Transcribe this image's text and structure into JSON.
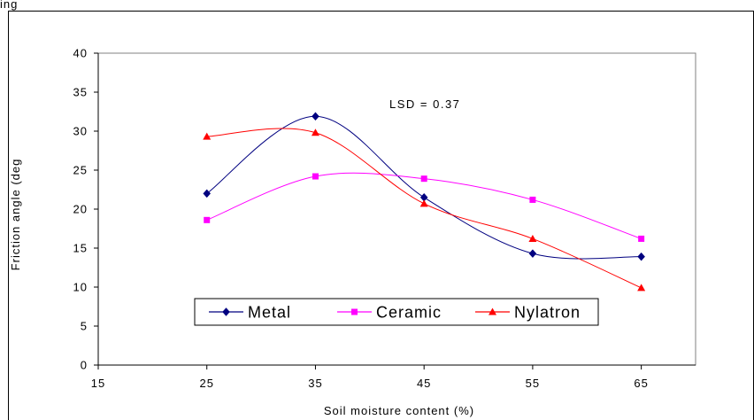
{
  "chart_data": {
    "type": "line",
    "title": "",
    "top_text": "ing",
    "xlabel": "Soil moisture content (%)",
    "ylabel": "Friction angle (deg",
    "xlim": [
      15,
      70
    ],
    "ylim": [
      0,
      40
    ],
    "x_ticks": [
      15,
      25,
      35,
      45,
      55,
      65
    ],
    "y_ticks": [
      0,
      5,
      10,
      15,
      20,
      25,
      30,
      35,
      40
    ],
    "grid": false,
    "legend_position": "bottom-center",
    "annotation": "LSD  = 0.37",
    "x": [
      25,
      35,
      45,
      55,
      65
    ],
    "series": [
      {
        "name": "Metal",
        "color": "#000080",
        "marker": "diamond",
        "values": [
          22.0,
          31.9,
          21.5,
          14.3,
          13.9
        ]
      },
      {
        "name": "Ceramic",
        "color": "#ff00ff",
        "marker": "square",
        "values": [
          18.6,
          24.2,
          23.9,
          21.2,
          16.2
        ]
      },
      {
        "name": "Nylatron",
        "color": "#ff0000",
        "marker": "triangle",
        "values": [
          29.3,
          29.8,
          20.7,
          16.2,
          9.9
        ]
      }
    ]
  }
}
